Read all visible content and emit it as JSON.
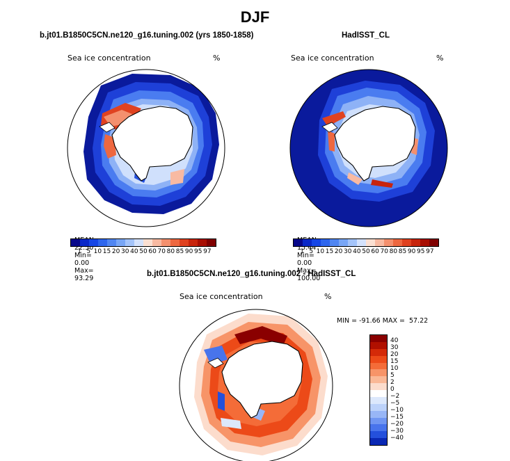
{
  "title": "DJF",
  "panels": [
    {
      "title": "b.jt01.B1850C5CN.ne120_g16.tuning.002 (yrs 1850-1858)",
      "variable": "Sea ice concentration",
      "units": "%",
      "mean_label": "MEAN=",
      "mean_value": "22.50",
      "min_label": "Min=",
      "min_value": "0.00",
      "max_label": "Max=",
      "max_value": "93.29"
    },
    {
      "title": "HadISST_CL",
      "variable": "Sea ice concentration",
      "units": "%",
      "mean_label": "MEAN=",
      "mean_value": "15.44",
      "min_label": "Min=",
      "min_value": "0.00",
      "max_label": "Max=",
      "max_value": "100.00"
    }
  ],
  "diff_panel": {
    "title": "b.jt01.B1850C5CN.ne120_g16.tuning.002 - HadISST_CL",
    "variable": "Sea ice concentration",
    "units": "%",
    "minmax": "MIN = -91.66 MAX =  57.22"
  },
  "colorbar_horizontal": {
    "labels": [
      "1",
      "5",
      "10",
      "15",
      "20",
      "30",
      "40",
      "50",
      "60",
      "70",
      "80",
      "85",
      "90",
      "95",
      "97"
    ],
    "colors": [
      "#08088a",
      "#0a28c8",
      "#1646e6",
      "#2e66ee",
      "#5086f2",
      "#78a6f6",
      "#a4c4fa",
      "#d4e2fc",
      "#fbe0d2",
      "#f8baa2",
      "#f4906e",
      "#ee6840",
      "#e04220",
      "#c8240c",
      "#a80e02",
      "#800000"
    ]
  },
  "colorbar_vertical": {
    "labels": [
      "40",
      "30",
      "20",
      "15",
      "10",
      "5",
      "2",
      "0",
      "−2",
      "−5",
      "−10",
      "−15",
      "−20",
      "−30",
      "−40"
    ],
    "colors": [
      "#8a0000",
      "#b01000",
      "#d42a08",
      "#ec4a18",
      "#f46c38",
      "#f79468",
      "#fab896",
      "#fcdccc",
      "#ffffff",
      "#dce8fc",
      "#bcd2fa",
      "#98b6f6",
      "#7096f2",
      "#4874ec",
      "#2450dc",
      "#0a28b4"
    ]
  },
  "colors": {
    "ocean_deep": "#0a1a9c",
    "land": "#ffffff",
    "coast": "#000000"
  }
}
